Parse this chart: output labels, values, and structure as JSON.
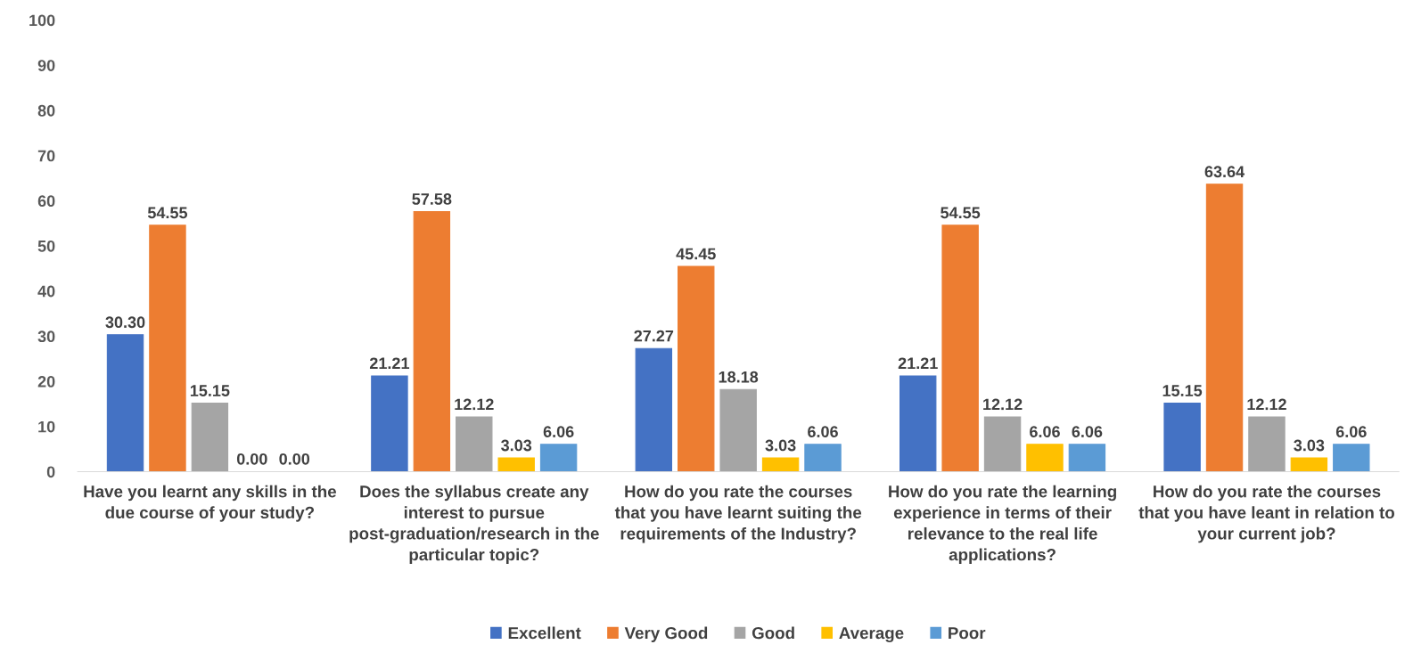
{
  "chart_data": {
    "type": "bar",
    "categories": [
      "Have you learnt any skills in the due course of your study?",
      "Does the syllabus create any interest to pursue post-graduation/research in the particular topic?",
      "How do you rate the courses that you have learnt suiting the requirements of the Industry?",
      "How do you rate the learning experience in terms of their relevance to the real life applications?",
      "How do you rate the courses that you have leant in relation to your current job?"
    ],
    "series": [
      {
        "name": "Excellent",
        "color": "#4472c4",
        "values": [
          30.3,
          21.21,
          27.27,
          21.21,
          15.15
        ],
        "value_labels": [
          "30.30",
          "21.21",
          "27.27",
          "21.21",
          "15.15"
        ]
      },
      {
        "name": "Very Good",
        "color": "#ed7d31",
        "values": [
          54.55,
          57.58,
          45.45,
          54.55,
          63.64
        ],
        "value_labels": [
          "54.55",
          "57.58",
          "45.45",
          "54.55",
          "63.64"
        ]
      },
      {
        "name": "Good",
        "color": "#a5a5a5",
        "values": [
          15.15,
          12.12,
          18.18,
          12.12,
          12.12
        ],
        "value_labels": [
          "15.15",
          "12.12",
          "18.18",
          "12.12",
          "12.12"
        ]
      },
      {
        "name": "Average",
        "color": "#ffc000",
        "values": [
          0.0,
          3.03,
          3.03,
          6.06,
          3.03
        ],
        "value_labels": [
          "0.00",
          "3.03",
          "3.03",
          "6.06",
          "3.03"
        ]
      },
      {
        "name": "Poor",
        "color": "#5b9bd5",
        "values": [
          0.0,
          6.06,
          6.06,
          6.06,
          6.06
        ],
        "value_labels": [
          "0.00",
          "6.06",
          "6.06",
          "6.06",
          "6.06"
        ]
      }
    ],
    "ylim": [
      0,
      100
    ],
    "yticks": [
      0,
      10,
      20,
      30,
      40,
      50,
      60,
      70,
      80,
      90,
      100
    ],
    "grid": false,
    "legend": "bottom"
  }
}
